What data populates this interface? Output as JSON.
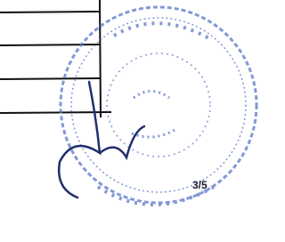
{
  "page_number": "3/5"
}
